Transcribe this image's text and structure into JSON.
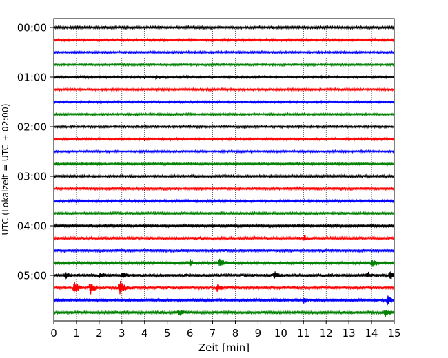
{
  "chart_data": {
    "type": "line",
    "xlabel": "Zeit  [min]",
    "ylabel": "UTC (Lokalzeit = UTC + 02:00)",
    "xlim": [
      0,
      15
    ],
    "x_ticks": [
      "0",
      "1",
      "2",
      "3",
      "4",
      "5",
      "6",
      "7",
      "8",
      "9",
      "10",
      "11",
      "12",
      "13",
      "14",
      "15"
    ],
    "y_tick_labels": [
      "00:00",
      "01:00",
      "02:00",
      "03:00",
      "04:00",
      "05:00"
    ],
    "grid_x": true,
    "grid_style": "dotted",
    "trace_interval_min": 15,
    "trace_colors_cycle": [
      "#000000",
      "#ff0000",
      "#0000ff",
      "#008000"
    ],
    "traces": [
      {
        "start": "00:00",
        "color": "#000000",
        "amplitude": 0.34,
        "events": []
      },
      {
        "start": "00:15",
        "color": "#ff0000",
        "amplitude": 0.3,
        "events": []
      },
      {
        "start": "00:30",
        "color": "#0000ff",
        "amplitude": 0.3,
        "events": []
      },
      {
        "start": "00:45",
        "color": "#008000",
        "amplitude": 0.3,
        "events": []
      },
      {
        "start": "01:00",
        "color": "#000000",
        "amplitude": 0.3,
        "events": [
          {
            "t": 4.5,
            "a": 0.9
          }
        ]
      },
      {
        "start": "01:15",
        "color": "#ff0000",
        "amplitude": 0.3,
        "events": []
      },
      {
        "start": "01:30",
        "color": "#0000ff",
        "amplitude": 0.28,
        "events": []
      },
      {
        "start": "01:45",
        "color": "#008000",
        "amplitude": 0.3,
        "events": []
      },
      {
        "start": "02:00",
        "color": "#000000",
        "amplitude": 0.3,
        "events": []
      },
      {
        "start": "02:15",
        "color": "#ff0000",
        "amplitude": 0.3,
        "events": []
      },
      {
        "start": "02:30",
        "color": "#0000ff",
        "amplitude": 0.28,
        "events": []
      },
      {
        "start": "02:45",
        "color": "#008000",
        "amplitude": 0.3,
        "events": []
      },
      {
        "start": "03:00",
        "color": "#000000",
        "amplitude": 0.34,
        "events": []
      },
      {
        "start": "03:15",
        "color": "#ff0000",
        "amplitude": 0.34,
        "events": []
      },
      {
        "start": "03:30",
        "color": "#0000ff",
        "amplitude": 0.34,
        "events": []
      },
      {
        "start": "03:45",
        "color": "#008000",
        "amplitude": 0.36,
        "events": []
      },
      {
        "start": "04:00",
        "color": "#000000",
        "amplitude": 0.38,
        "events": []
      },
      {
        "start": "04:15",
        "color": "#ff0000",
        "amplitude": 0.4,
        "events": [
          {
            "t": 11.0,
            "a": 0.9
          }
        ]
      },
      {
        "start": "04:30",
        "color": "#0000ff",
        "amplitude": 0.38,
        "events": []
      },
      {
        "start": "04:45",
        "color": "#008000",
        "amplitude": 0.4,
        "events": [
          {
            "t": 6.0,
            "a": 1.2
          },
          {
            "t": 7.3,
            "a": 1.4
          },
          {
            "t": 14.0,
            "a": 1.6
          }
        ]
      },
      {
        "start": "05:00",
        "color": "#000000",
        "amplitude": 0.45,
        "events": [
          {
            "t": 0.5,
            "a": 1.2
          },
          {
            "t": 2.0,
            "a": 0.9
          },
          {
            "t": 3.0,
            "a": 1.0
          },
          {
            "t": 9.7,
            "a": 1.1
          },
          {
            "t": 13.8,
            "a": 1.0
          },
          {
            "t": 14.8,
            "a": 1.6
          }
        ]
      },
      {
        "start": "05:15",
        "color": "#ff0000",
        "amplitude": 0.45,
        "events": [
          {
            "t": 0.9,
            "a": 1.9
          },
          {
            "t": 1.6,
            "a": 2.0
          },
          {
            "t": 2.9,
            "a": 2.5
          },
          {
            "t": 7.2,
            "a": 1.1
          }
        ]
      },
      {
        "start": "05:30",
        "color": "#0000ff",
        "amplitude": 0.38,
        "events": [
          {
            "t": 11.0,
            "a": 0.9
          },
          {
            "t": 14.7,
            "a": 1.5
          }
        ]
      },
      {
        "start": "05:45",
        "color": "#008000",
        "amplitude": 0.4,
        "events": [
          {
            "t": 5.5,
            "a": 1.1
          },
          {
            "t": 14.6,
            "a": 1.4
          }
        ]
      }
    ]
  }
}
